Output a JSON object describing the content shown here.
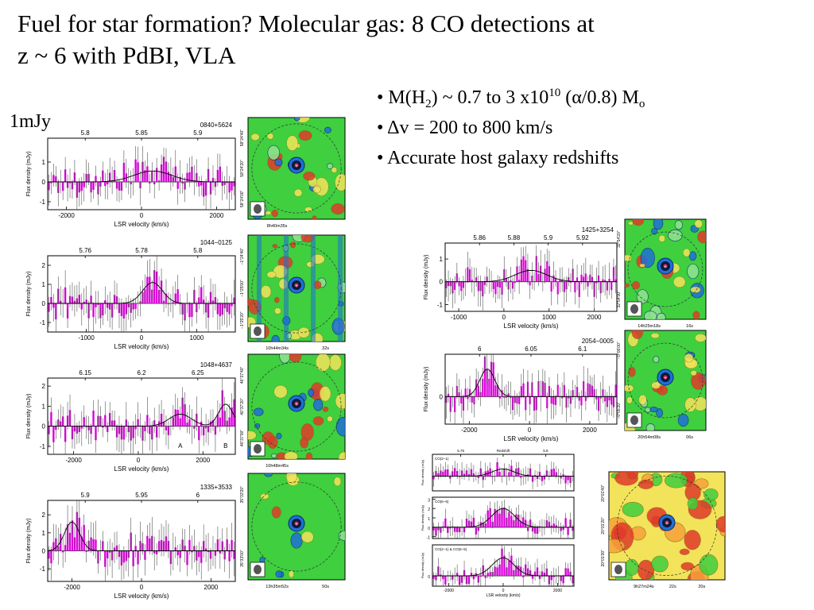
{
  "slide": {
    "title_line1": "Fuel for star formation? Molecular gas: 8 CO detections at",
    "title_line2": "z ~ 6 with PdBI, VLA",
    "scale_label": "1mJy",
    "bullets": [
      {
        "pre": "M(H",
        "sub": "2",
        "mid": ") ~ 0.7 to 3 x10",
        "sup": "10",
        "post": " (α/0.8) M",
        "sub2": "o"
      },
      {
        "text": "Δv = 200 to 800 km/s"
      },
      {
        "text": "Accurate host galaxy redshifts"
      }
    ]
  },
  "colors": {
    "spectrum_fill": "#e000e0",
    "map_green": "#3fcf3f",
    "map_yellow": "#f3e35a",
    "map_red": "#e03a2a",
    "map_blue": "#1f6fd6",
    "map_dark": "#0a1a3a"
  },
  "chart_data": [
    {
      "type": "bar",
      "source": "0840+5624",
      "xlabel": "LSR velocity (km/s)",
      "ylabel": "Flux density (mJy)",
      "xticks": [
        "-2000",
        "0",
        "2000"
      ],
      "yticks": [
        "-1",
        "0",
        "1"
      ],
      "top_ticks": [
        "5.8",
        "5.85",
        "5.9"
      ],
      "xlim": [
        -2500,
        2500
      ],
      "ylim": [
        -1.4,
        2.2
      ],
      "line_center": 300,
      "line_peak": 0.55,
      "line_width": 500,
      "extra_lines": []
    },
    {
      "type": "bar",
      "source": "1044−0125",
      "xlabel": "LSR velocity (km/s)",
      "ylabel": "Flux density (mJy)",
      "xticks": [
        "-1000",
        "0",
        "1000"
      ],
      "yticks": [
        "-1",
        "0",
        "1",
        "2"
      ],
      "top_ticks": [
        "5.76",
        "5.78",
        "5.8"
      ],
      "xlim": [
        -1700,
        1700
      ],
      "ylim": [
        -1.5,
        2.5
      ],
      "line_center": 200,
      "line_peak": 1.1,
      "line_width": 180,
      "extra_lines": []
    },
    {
      "type": "bar",
      "source": "1048+4637",
      "xlabel": "LSR velocity (km/s)",
      "ylabel": "Flux density (mJy)",
      "xticks": [
        "-2000",
        "0",
        "2000"
      ],
      "yticks": [
        "-1",
        "0",
        "1",
        "2"
      ],
      "top_ticks": [
        "6.15",
        "6.2",
        "6.25"
      ],
      "xlim": [
        -2800,
        3000
      ],
      "ylim": [
        -1.4,
        2.4
      ],
      "line_center": 1300,
      "line_peak": 0.6,
      "line_width": 350,
      "extra_lines": [
        {
          "center": 2700,
          "peak": 1.1,
          "width": 220
        }
      ],
      "annotations": [
        "A",
        "B"
      ]
    },
    {
      "type": "bar",
      "source": "1335+3533",
      "xlabel": "LSR velocity (km/s)",
      "ylabel": "Flux density (mJy)",
      "xticks": [
        "-2000",
        "0",
        "2000"
      ],
      "yticks": [
        "-1",
        "0",
        "1",
        "2"
      ],
      "top_ticks": [
        "5.9",
        "5.95",
        "6"
      ],
      "xlim": [
        -2700,
        2700
      ],
      "ylim": [
        -1.7,
        2.8
      ],
      "line_center": -2000,
      "line_peak": 1.6,
      "line_width": 220,
      "extra_lines": []
    },
    {
      "type": "bar",
      "source": "1425+3254",
      "xlabel": "LSR velocity (km/s)",
      "ylabel": "Flux density (mJy)",
      "xticks": [
        "-1000",
        "0",
        "1000",
        "2000"
      ],
      "yticks": [
        "-1",
        "0",
        "1"
      ],
      "top_ticks": [
        "5.86",
        "5.88",
        "5.9",
        "5.92"
      ],
      "xlim": [
        -1300,
        2500
      ],
      "ylim": [
        -1.3,
        1.7
      ],
      "line_center": 600,
      "line_peak": 0.5,
      "line_width": 350,
      "extra_lines": []
    },
    {
      "type": "bar",
      "source": "2054−0005",
      "xlabel": "LSR velocity (km/s)",
      "ylabel": "Flux density (mJy)",
      "xticks": [
        "-2000",
        "0",
        "2000"
      ],
      "yticks": [
        "0"
      ],
      "top_ticks": [
        "6",
        "6.05",
        "6.1"
      ],
      "xlim": [
        -2800,
        2900
      ],
      "ylim": [
        -1.3,
        2.0
      ],
      "line_center": -1400,
      "line_peak": 1.3,
      "line_width": 250,
      "extra_lines": []
    },
    {
      "type": "bar",
      "source": "CO(2−1)",
      "xlabel": "",
      "ylabel": "Flux density (mJy)",
      "xticks": [],
      "yticks": [],
      "top_ticks": [
        "5.75",
        "Redshift",
        "5.8"
      ],
      "xlim": [
        -2600,
        2600
      ],
      "ylim": [
        -0.4,
        0.6
      ],
      "line_center": 0,
      "line_peak": 0.2,
      "line_width": 400,
      "extra_lines": []
    },
    {
      "type": "bar",
      "source": "CO(6−5)",
      "xlabel": "",
      "ylabel": "Flux density (mJy)",
      "xticks": [],
      "yticks": [
        "-1",
        "0",
        "1",
        "2",
        "3"
      ],
      "top_ticks": [],
      "xlim": [
        -2600,
        2600
      ],
      "ylim": [
        -1.2,
        3.2
      ],
      "line_center": 0,
      "line_peak": 2.0,
      "line_width": 420,
      "extra_lines": []
    },
    {
      "type": "bar",
      "source": "CO(2−1) & CO(6−5)",
      "xlabel": "LSR velocity (km/s)",
      "ylabel": "Flux density (mJy)",
      "xticks": [
        "-2000",
        "0",
        "2000"
      ],
      "yticks": [
        "0"
      ],
      "top_ticks": [],
      "xlim": [
        -2600,
        2600
      ],
      "ylim": [
        -0.4,
        1.2
      ],
      "line_center": 0,
      "line_peak": 0.7,
      "line_width": 400,
      "extra_lines": []
    }
  ],
  "maps": [
    {
      "ylabels": [
        "58°24'40\"",
        "58°24'20\"",
        "58°24'00\""
      ],
      "xlabels": [
        "8h40m35s"
      ],
      "style": "green",
      "blobs": 3
    },
    {
      "ylabels": [
        "−1°24'40\"",
        "−1°25'00\"",
        "−1°25'20\""
      ],
      "xlabels": [
        "10h44m34s",
        "32s"
      ],
      "style": "stripes",
      "blobs": 4
    },
    {
      "ylabels": [
        "46°37'40\"",
        "46°37'20\"",
        "46°37'00\""
      ],
      "xlabels": [
        "10h48m45s"
      ],
      "style": "green",
      "blobs": 5
    },
    {
      "ylabels": [
        "35°33'20\"",
        "35°33'00\""
      ],
      "xlabels": [
        "13h35m52s",
        "50s"
      ],
      "style": "smooth",
      "blobs": 2
    },
    {
      "ylabels": [
        "32°54'20\"",
        "32°54'00\""
      ],
      "xlabels": [
        "14h25m18s",
        "16s"
      ],
      "style": "green",
      "blobs": 3
    },
    {
      "ylabels": [
        "−0°05'00\"",
        "−0°05'20\""
      ],
      "xlabels": [
        "20h54m08s",
        "06s"
      ],
      "style": "green",
      "blobs": 3
    },
    {
      "ylabels": [
        "20°01'40\"",
        "20°01'20\"",
        "20°01'00\""
      ],
      "xlabels": [
        "9h27m24s",
        "22s",
        "20s"
      ],
      "style": "warm",
      "blobs": 4
    }
  ]
}
